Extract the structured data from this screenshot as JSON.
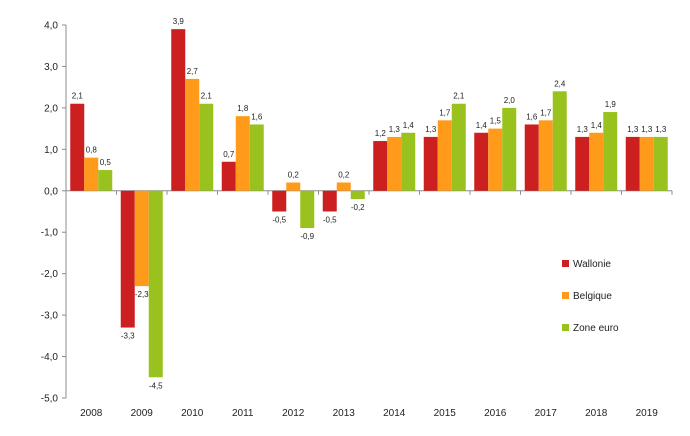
{
  "chart_data": {
    "type": "bar",
    "title": "",
    "xlabel": "",
    "ylabel": "",
    "categories": [
      "2008",
      "2009",
      "2010",
      "2011",
      "2012",
      "2013",
      "2014",
      "2015",
      "2016",
      "2017",
      "2018",
      "2019"
    ],
    "series": [
      {
        "name": "Wallonie",
        "color": "#cc1f1f",
        "values": [
          2.1,
          -3.3,
          3.9,
          0.7,
          -0.5,
          -0.5,
          1.2,
          1.3,
          1.4,
          1.6,
          1.3,
          1.3
        ],
        "labels": [
          "2,1",
          "-3,3",
          "3,9",
          "0,7",
          "-0,5",
          "-0,5",
          "1,2",
          "1,3",
          "1,4",
          "1,6",
          "1,3",
          "1,3"
        ]
      },
      {
        "name": "Belgique",
        "color": "#ff9a1a",
        "values": [
          0.8,
          -2.3,
          2.7,
          1.8,
          0.2,
          0.2,
          1.3,
          1.7,
          1.5,
          1.7,
          1.4,
          1.3
        ],
        "labels": [
          "0,8",
          "-2,3",
          "2,7",
          "1,8",
          "0,2",
          "0,2",
          "1,3",
          "1,7",
          "1,5",
          "1,7",
          "1,4",
          "1,3"
        ]
      },
      {
        "name": "Zone euro",
        "color": "#99c21f",
        "values": [
          0.5,
          -4.5,
          2.1,
          1.6,
          -0.9,
          -0.2,
          1.4,
          2.1,
          2.0,
          2.4,
          1.9,
          1.3
        ],
        "labels": [
          "0,5",
          "-4,5",
          "2,1",
          "1,6",
          "-0,9",
          "-0,2",
          "1,4",
          "2,1",
          "2,0",
          "2,4",
          "1,9",
          "1,3"
        ]
      }
    ],
    "ylim": [
      -5,
      4
    ],
    "yticks": [
      4,
      3,
      2,
      1,
      0,
      -1,
      -2,
      -3,
      -4,
      -5
    ],
    "ytick_labels": [
      "4,0",
      "3,0",
      "2,0",
      "1,0",
      "0,0",
      "-1,0",
      "-2,0",
      "-3,0",
      "-4,0",
      "-5,0"
    ],
    "grid": false,
    "legend_position": "right"
  }
}
